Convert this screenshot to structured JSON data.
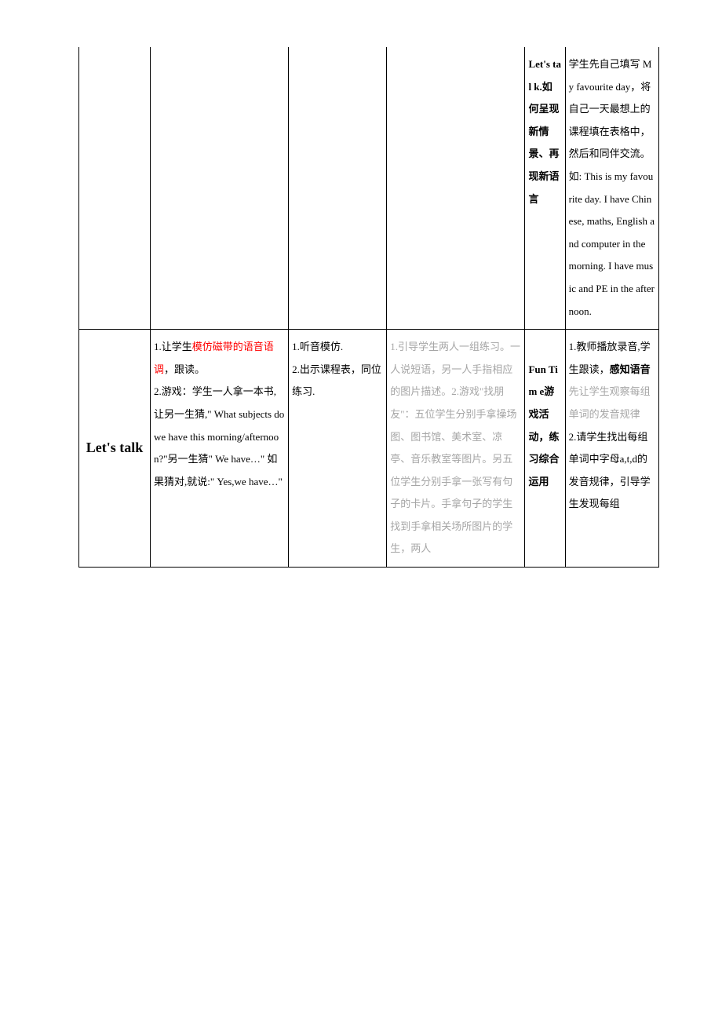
{
  "colors": {
    "text_black": "#000000",
    "text_red": "#ff0000",
    "text_grey": "#a6a6a6",
    "border": "#000000",
    "background": "#ffffff"
  },
  "row1": {
    "col5_pre": "Let's tal k.",
    "col5_mid": "如何呈现新情景、再现新语言",
    "col6": "学生先自己填写 My favourite day，将自己一天最想上的课程填在表格中，然后和同伴交流。如: This is my favourite day. I have Chinese, maths, English and computer in the morning. I have music and PE in the afternoon."
  },
  "row2": {
    "header": "Let's talk",
    "col2_p1a": "1.让学生",
    "col2_p1b": "模仿磁带的语音语调",
    "col2_p1c": "，跟读。",
    "col2_p2": "2.游戏：学生一人拿一本书,让另一生猜,\" What subjects do we have this morning/afternoon?\"另一生猜\" We have…\" 如果猜对,就说:\" Yes,we have…\"",
    "col3_p1": "1.听音模仿.",
    "col3_p2": "2.出示课程表，同位练习.",
    "col4": "1.引导学生两人一组练习。一人说短语，另一人手指相应的图片描述。2.游戏\"找朋友\"：五位学生分别手拿操场图、图书馆、美术室、凉亭、音乐教室等图片。另五位学生分别手拿一张写有句子的卡片。手拿句子的学生找到手拿相关场所图片的学生，两人",
    "col5_a": "Fun Tim e",
    "col5_b": "游戏活动，练习综合运用",
    "col6_p1a": "1.教师播放录音,学生跟读，",
    "col6_p1b": "感知语音",
    "col6_p1c": "先让学生观察每组单词的发音规律",
    "col6_p2": "2.请学生找出每组单词中字母a,t,d的发音规律，引导学生发现每组"
  }
}
